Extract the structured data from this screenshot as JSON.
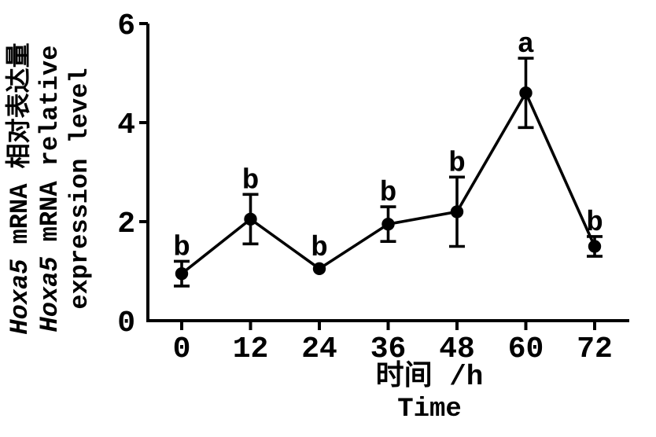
{
  "figure": {
    "background": "#ffffff",
    "ink": "#000000"
  },
  "y_axis_label": {
    "line1_italic": "Hoxa5",
    "line1_rest": " mRNA 相对表达量",
    "line2_italic": "Hoxa5",
    "line2_rest": " mRNA relative",
    "line3": "expression level"
  },
  "x_axis_label": {
    "line1": "时间 /h",
    "line2": "Time"
  },
  "chart_data": {
    "type": "line",
    "title": "",
    "x": [
      0,
      12,
      24,
      36,
      48,
      60,
      72
    ],
    "xticks": [
      0,
      12,
      24,
      36,
      48,
      60,
      72
    ],
    "yticks": [
      0,
      2,
      4,
      6
    ],
    "ylim": [
      0,
      6
    ],
    "xlabel": "时间 /h (Time)",
    "ylabel": "Hoxa5 mRNA 相对表达量 (Hoxa5 mRNA relative expression level)",
    "grid": false,
    "legend": "none",
    "marker": "filled-circle",
    "line_color": "#000000",
    "series": [
      {
        "name": "Hoxa5 mRNA relative expression level",
        "values": [
          0.95,
          2.05,
          1.05,
          1.95,
          2.2,
          4.6,
          1.5
        ],
        "errors": [
          0.25,
          0.5,
          0,
          0.35,
          0.7,
          0.7,
          0.2
        ],
        "point_labels": [
          "b",
          "b",
          "b",
          "b",
          "b",
          "a",
          "b"
        ]
      }
    ]
  }
}
